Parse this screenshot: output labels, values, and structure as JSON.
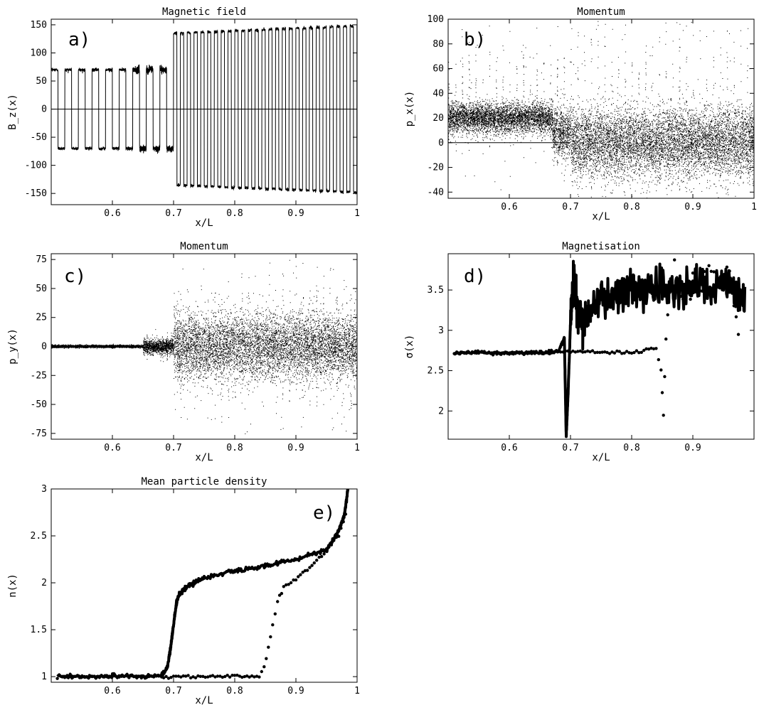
{
  "chart_data": [
    {
      "panel": "a)",
      "type": "line",
      "title": "Magnetic field",
      "xlabel": "x/L",
      "ylabel": "B_z(x)",
      "xlim": [
        0.5,
        1.0
      ],
      "ylim": [
        -170,
        160
      ],
      "xticks": [
        0.6,
        0.7,
        0.8,
        0.9,
        1
      ],
      "xtick_labels": [
        "0.6",
        "0.7",
        "0.8",
        "0.9",
        "1"
      ],
      "yticks": [
        -150,
        -100,
        -50,
        0,
        50,
        100,
        150
      ],
      "ytick_labels": [
        "-150",
        "-100",
        "-50",
        "0",
        "50",
        "100",
        "150"
      ],
      "zero_line": true,
      "series": [
        {
          "style": "square-wave",
          "segments": [
            {
              "x_start": 0.5,
              "x_end": 0.7,
              "period": 0.0222,
              "amplitude": 70
            },
            {
              "x_start": 0.7,
              "x_end": 1.0,
              "period": 0.0111,
              "amplitude": 135,
              "amplitude_end": 148
            }
          ]
        }
      ]
    },
    {
      "panel": "b)",
      "type": "scatter",
      "title": "Momentum",
      "xlabel": "x/L",
      "ylabel": "p_x(x)",
      "xlim": [
        0.5,
        1.0
      ],
      "ylim": [
        -45,
        100
      ],
      "xticks": [
        0.6,
        0.7,
        0.8,
        0.9,
        1
      ],
      "xtick_labels": [
        "0.6",
        "0.7",
        "0.8",
        "0.9",
        "1"
      ],
      "yticks": [
        -40,
        -20,
        0,
        20,
        40,
        60,
        80,
        100
      ],
      "ytick_labels": [
        "-40",
        "-20",
        "0",
        "20",
        "40",
        "60",
        "80",
        "100"
      ],
      "zero_line_until": 0.7,
      "regions": [
        {
          "x_start": 0.5,
          "x_end": 0.67,
          "center": 20,
          "spread": 6,
          "spike_max": 60
        },
        {
          "x_start": 0.67,
          "x_end": 0.7,
          "center": 8,
          "spread": 10,
          "spike_max": 100
        },
        {
          "x_start": 0.7,
          "x_end": 1.0,
          "center": 0,
          "spread": 14,
          "spike_max": 100
        }
      ]
    },
    {
      "panel": "c)",
      "type": "scatter",
      "title": "Momentum",
      "xlabel": "x/L",
      "ylabel": "p_y(x)",
      "xlim": [
        0.5,
        1.0
      ],
      "ylim": [
        -80,
        80
      ],
      "xticks": [
        0.6,
        0.7,
        0.8,
        0.9,
        1
      ],
      "xtick_labels": [
        "0.6",
        "0.7",
        "0.8",
        "0.9",
        "1"
      ],
      "yticks": [
        -75,
        -50,
        -25,
        0,
        25,
        50,
        75
      ],
      "ytick_labels": [
        "-75",
        "-50",
        "-25",
        "0",
        "25",
        "50",
        "75"
      ],
      "regions": [
        {
          "x_start": 0.5,
          "x_end": 0.65,
          "center": 0,
          "spread": 0.5,
          "spike_max": 2
        },
        {
          "x_start": 0.65,
          "x_end": 0.7,
          "center": 0,
          "spread": 3,
          "spike_max": 15
        },
        {
          "x_start": 0.7,
          "x_end": 1.0,
          "center": 0,
          "spread": 14,
          "spike_max": 78
        }
      ]
    },
    {
      "panel": "d)",
      "type": "line",
      "title": "Magnetisation",
      "xlabel": "x/L",
      "ylabel": "σ(x)",
      "xlim": [
        0.5,
        1.0
      ],
      "ylim": [
        1.65,
        3.95
      ],
      "xticks": [
        0.6,
        0.7,
        0.8,
        0.9
      ],
      "xtick_labels": [
        "0.6",
        "0.7",
        "0.8",
        "0.9"
      ],
      "yticks": [
        2,
        2.5,
        3,
        3.5
      ],
      "ytick_labels": [
        "2",
        "2.5",
        "3",
        "3.5"
      ],
      "series": [
        {
          "style": "solid",
          "x": [
            0.51,
            0.55,
            0.6,
            0.65,
            0.68,
            0.69,
            0.693,
            0.696,
            0.7,
            0.706,
            0.712,
            0.72,
            0.73,
            0.75,
            0.78,
            0.8,
            0.82,
            0.85,
            0.87,
            0.9,
            0.93,
            0.96,
            0.985
          ],
          "y": [
            2.72,
            2.72,
            2.72,
            2.72,
            2.74,
            2.9,
            1.68,
            2.2,
            3.1,
            3.7,
            3.2,
            3.05,
            3.2,
            3.35,
            3.45,
            3.55,
            3.5,
            3.55,
            3.5,
            3.55,
            3.5,
            3.6,
            3.4
          ]
        },
        {
          "style": "dotted",
          "x": [
            0.51,
            0.6,
            0.7,
            0.8,
            0.84,
            0.848,
            0.852,
            0.856,
            0.862,
            0.87,
            0.88,
            0.9,
            0.93,
            0.96,
            0.978
          ],
          "y": [
            2.72,
            2.72,
            2.74,
            2.72,
            2.78,
            2.5,
            1.95,
            2.9,
            3.5,
            3.9,
            3.4,
            3.55,
            3.65,
            3.75,
            2.85
          ]
        }
      ]
    },
    {
      "panel": "e)",
      "type": "line",
      "title": "Mean particle density",
      "xlabel": "x/L",
      "ylabel": "n(x)",
      "xlim": [
        0.5,
        1.0
      ],
      "ylim": [
        0.94,
        3.0
      ],
      "xticks": [
        0.6,
        0.7,
        0.8,
        0.9,
        1
      ],
      "xtick_labels": [
        "0.6",
        "0.7",
        "0.8",
        "0.9",
        "1"
      ],
      "yticks": [
        1,
        1.5,
        2,
        2.5,
        3
      ],
      "ytick_labels": [
        "1",
        "1.5",
        "2",
        "2.5",
        "3"
      ],
      "series": [
        {
          "style": "solid",
          "x": [
            0.51,
            0.6,
            0.68,
            0.69,
            0.695,
            0.7,
            0.705,
            0.71,
            0.72,
            0.75,
            0.8,
            0.85,
            0.9,
            0.95,
            0.97,
            0.98,
            0.985
          ],
          "y": [
            1.0,
            1.0,
            1.01,
            1.1,
            1.3,
            1.55,
            1.8,
            1.88,
            1.95,
            2.05,
            2.13,
            2.18,
            2.25,
            2.35,
            2.55,
            2.75,
            3.0
          ]
        },
        {
          "style": "dotted",
          "x": [
            0.51,
            0.7,
            0.84,
            0.848,
            0.855,
            0.862,
            0.87,
            0.88,
            0.9,
            0.93,
            0.95,
            0.97,
            0.985
          ],
          "y": [
            1.0,
            1.0,
            1.0,
            1.1,
            1.3,
            1.55,
            1.8,
            1.95,
            2.05,
            2.2,
            2.35,
            2.5,
            2.8
          ]
        }
      ]
    }
  ]
}
